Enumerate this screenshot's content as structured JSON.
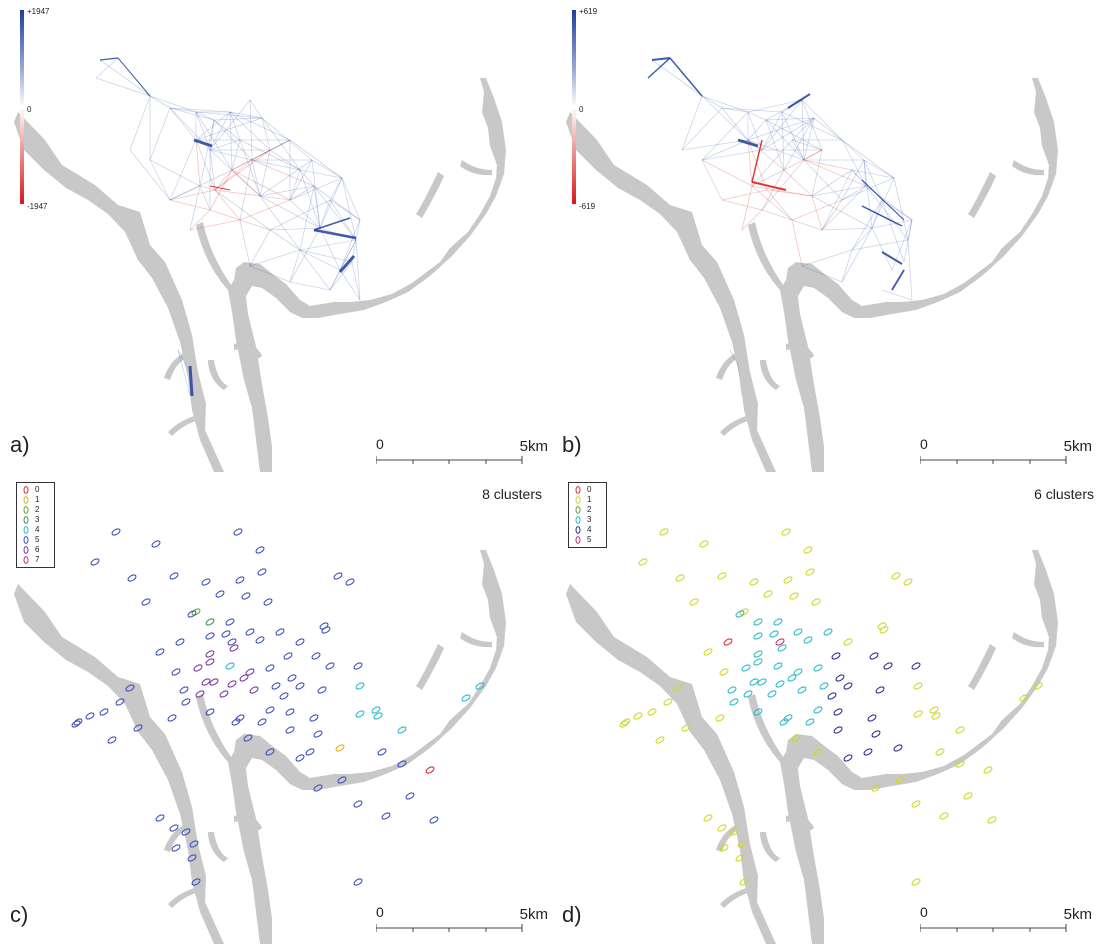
{
  "panels": {
    "a": {
      "label": "a)",
      "colorbar": {
        "max": "+1947",
        "mid": "0",
        "min": "-1947"
      }
    },
    "b": {
      "label": "b)",
      "colorbar": {
        "max": "+619",
        "mid": "0",
        "min": "-619"
      }
    },
    "c": {
      "label": "c)",
      "title": "8 clusters",
      "legend": [
        "0",
        "1",
        "2",
        "3",
        "4",
        "5",
        "6",
        "7"
      ]
    },
    "d": {
      "label": "d)",
      "title": "6 clusters",
      "legend": [
        "0",
        "1",
        "2",
        "3",
        "4",
        "5"
      ]
    }
  },
  "scale": {
    "start": "0",
    "end": "5km"
  },
  "colors": {
    "river": "#c8c8c8",
    "positive_flow": "#1f3f9c",
    "negative_flow": "#d81818",
    "clusters_c": [
      "#d93030",
      "#e0b020",
      "#66a830",
      "#3a9a50",
      "#30b8c8",
      "#4050b8",
      "#7a3aa0",
      "#c8307a"
    ],
    "clusters_d": [
      "#d93030",
      "#cfd630",
      "#66a830",
      "#30b8c8",
      "#30308a",
      "#c8307a"
    ]
  }
}
